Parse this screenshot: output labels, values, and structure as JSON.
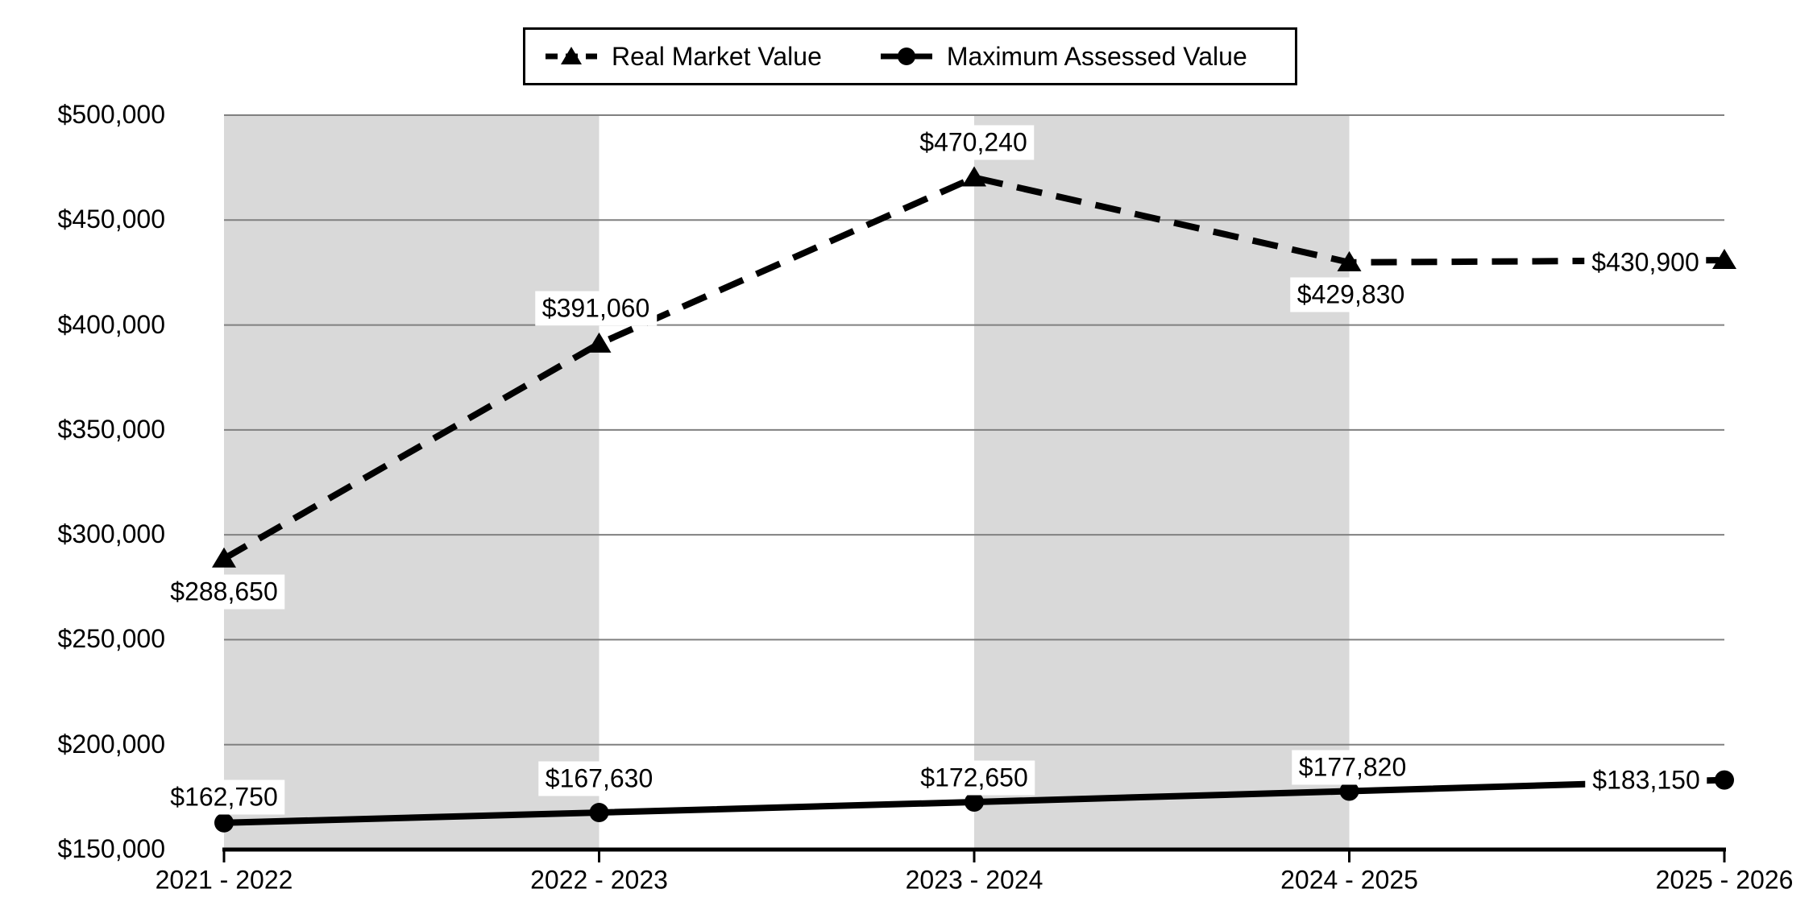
{
  "chart_data": {
    "type": "line",
    "categories": [
      "2021 - 2022",
      "2022 - 2023",
      "2023 - 2024",
      "2024 - 2025",
      "2025 - 2026"
    ],
    "series": [
      {
        "name": "Real Market Value",
        "line_style": "dashed",
        "marker": "triangle",
        "color": "#000000",
        "values": [
          288650,
          391060,
          470240,
          429830,
          430900
        ],
        "data_labels": [
          "$288,650",
          "$391,060",
          "$470,240",
          "$429,830",
          "$430,900"
        ]
      },
      {
        "name": "Maximum Assessed Value",
        "line_style": "solid",
        "marker": "circle",
        "color": "#000000",
        "values": [
          162750,
          167630,
          172650,
          177820,
          183150
        ],
        "data_labels": [
          "$162,750",
          "$167,630",
          "$172,650",
          "$177,820",
          "$183,150"
        ]
      }
    ],
    "x_axis": {
      "tick_labels": [
        "2021 - 2022",
        "2022 - 2023",
        "2023 - 2024",
        "2024 - 2025",
        "2025 - 2026"
      ]
    },
    "y_axis": {
      "min": 150000,
      "max": 500000,
      "step": 50000,
      "tick_labels": [
        "$500,000",
        "$450,000",
        "$400,000",
        "$350,000",
        "$300,000",
        "$250,000",
        "$200,000",
        "$150,000"
      ]
    },
    "legend_position": "top",
    "grid": true,
    "plot_band_pairs": [
      [
        0,
        1
      ],
      [
        2,
        3
      ]
    ],
    "colors": {
      "background": "#ffffff",
      "band_fill": "#d9d9d9",
      "gridline": "#808080",
      "axis": "#000000",
      "series": "#000000",
      "label_background": "#ffffff"
    }
  }
}
